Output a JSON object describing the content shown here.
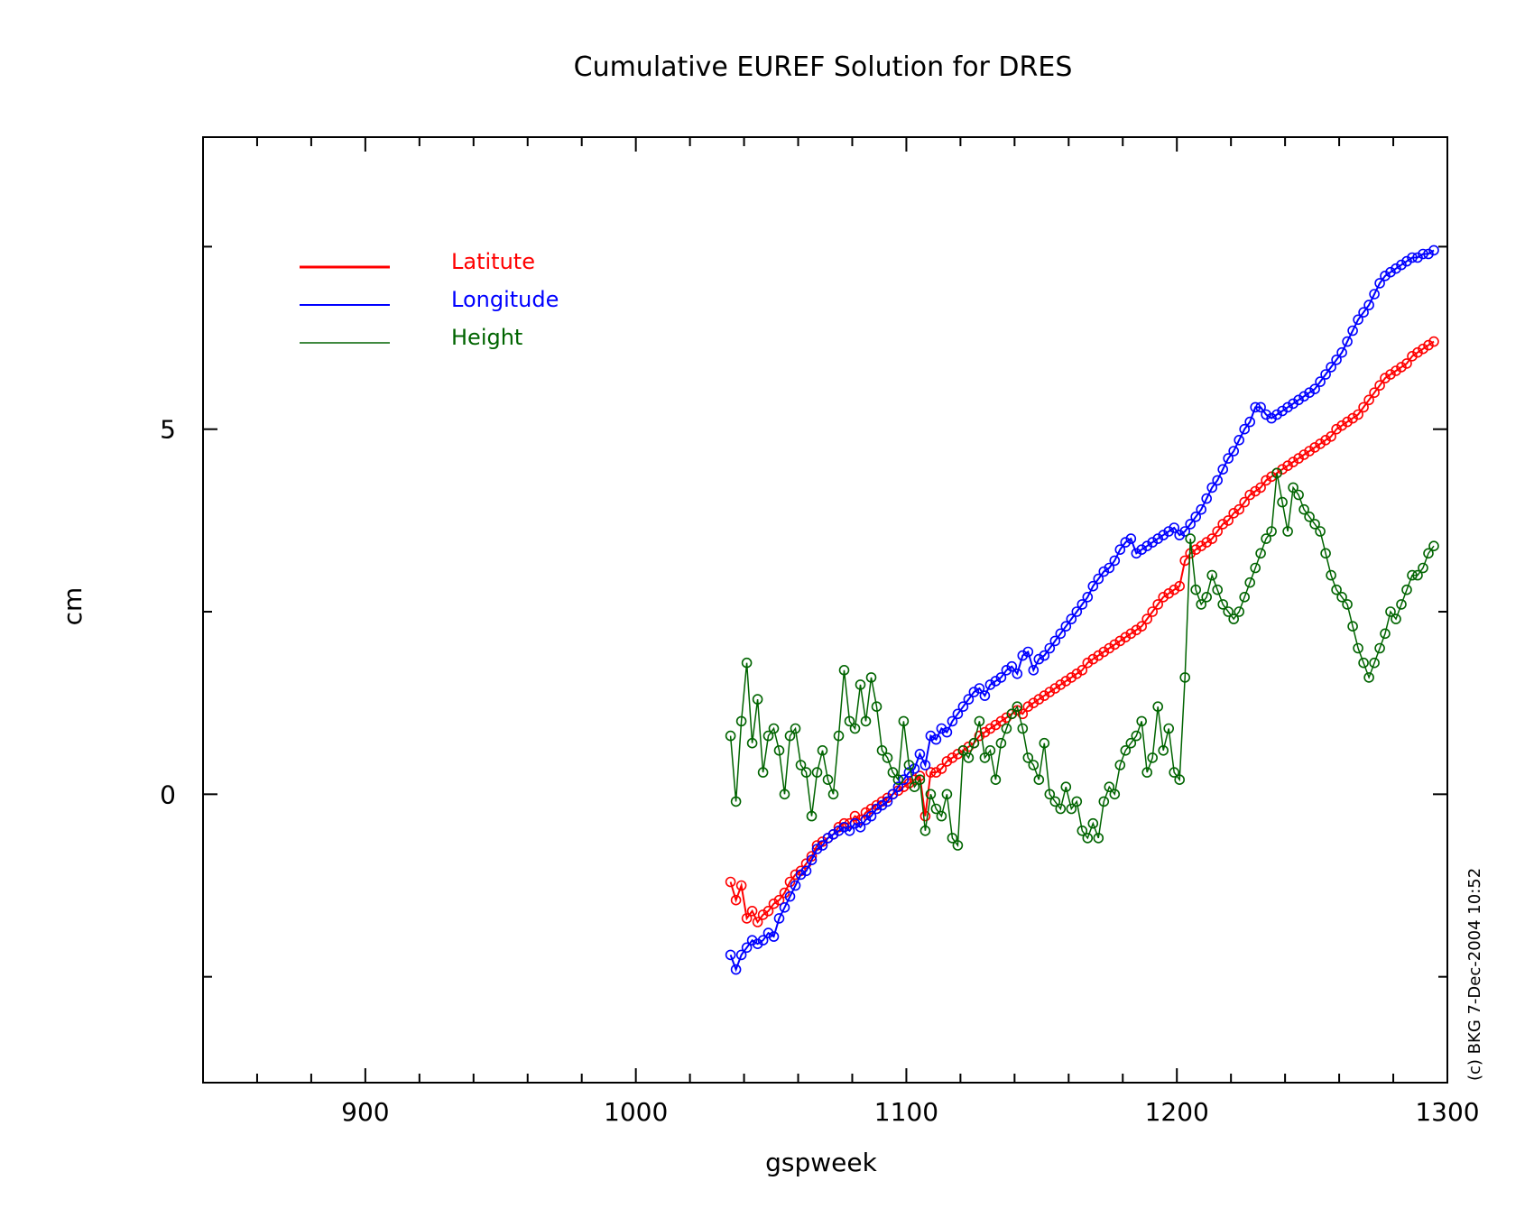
{
  "chart_data": {
    "type": "line",
    "title": "Cumulative EUREF Solution for DRES",
    "xlabel": "gspweek",
    "ylabel": "cm",
    "xlim": [
      840,
      1300
    ],
    "ylim": [
      -3.95,
      9
    ],
    "xticks": [
      900,
      1000,
      1100,
      1200,
      1300
    ],
    "yticks": [
      0,
      5
    ],
    "marker": "open-circle",
    "grid": false,
    "legend_position": "top-left",
    "credit": "(c) BKG 7-Dec-2004 10:52",
    "series": [
      {
        "name": "Latitute",
        "color": "#ff0000",
        "x": [
          1035,
          1037,
          1039,
          1041,
          1043,
          1045,
          1047,
          1049,
          1051,
          1053,
          1055,
          1057,
          1059,
          1061,
          1063,
          1065,
          1067,
          1069,
          1071,
          1073,
          1075,
          1077,
          1079,
          1081,
          1083,
          1085,
          1087,
          1089,
          1091,
          1093,
          1095,
          1097,
          1099,
          1101,
          1103,
          1105,
          1107,
          1109,
          1111,
          1113,
          1115,
          1117,
          1119,
          1121,
          1123,
          1125,
          1127,
          1129,
          1131,
          1133,
          1135,
          1137,
          1139,
          1141,
          1143,
          1145,
          1147,
          1149,
          1151,
          1153,
          1155,
          1157,
          1159,
          1161,
          1163,
          1165,
          1167,
          1169,
          1171,
          1173,
          1175,
          1177,
          1179,
          1181,
          1183,
          1185,
          1187,
          1189,
          1191,
          1193,
          1195,
          1197,
          1199,
          1201,
          1203,
          1205,
          1207,
          1209,
          1211,
          1213,
          1215,
          1217,
          1219,
          1221,
          1223,
          1225,
          1227,
          1229,
          1231,
          1233,
          1235,
          1237,
          1239,
          1241,
          1243,
          1245,
          1247,
          1249,
          1251,
          1253,
          1255,
          1257,
          1259,
          1261,
          1263,
          1265,
          1267,
          1269,
          1271,
          1273,
          1275,
          1277,
          1279,
          1281,
          1283,
          1285,
          1287,
          1289,
          1291,
          1293,
          1295
        ],
        "y": [
          -1.2,
          -1.45,
          -1.25,
          -1.7,
          -1.6,
          -1.75,
          -1.65,
          -1.6,
          -1.5,
          -1.45,
          -1.35,
          -1.2,
          -1.1,
          -1.05,
          -0.95,
          -0.85,
          -0.7,
          -0.65,
          -0.6,
          -0.55,
          -0.45,
          -0.4,
          -0.4,
          -0.3,
          -0.35,
          -0.25,
          -0.2,
          -0.15,
          -0.1,
          -0.05,
          0.0,
          0.05,
          0.1,
          0.15,
          0.2,
          0.25,
          -0.3,
          0.3,
          0.3,
          0.35,
          0.45,
          0.5,
          0.55,
          0.6,
          0.65,
          0.7,
          0.8,
          0.85,
          0.9,
          0.95,
          1.0,
          1.05,
          1.1,
          1.15,
          1.1,
          1.2,
          1.25,
          1.3,
          1.35,
          1.4,
          1.45,
          1.5,
          1.55,
          1.6,
          1.65,
          1.7,
          1.8,
          1.85,
          1.9,
          1.95,
          2.0,
          2.05,
          2.1,
          2.15,
          2.2,
          2.25,
          2.3,
          2.4,
          2.5,
          2.6,
          2.7,
          2.75,
          2.8,
          2.85,
          3.2,
          3.3,
          3.35,
          3.4,
          3.45,
          3.5,
          3.6,
          3.7,
          3.75,
          3.85,
          3.9,
          4.0,
          4.1,
          4.15,
          4.2,
          4.3,
          4.35,
          4.4,
          4.45,
          4.5,
          4.55,
          4.6,
          4.65,
          4.7,
          4.75,
          4.8,
          4.85,
          4.9,
          5.0,
          5.05,
          5.1,
          5.15,
          5.2,
          5.3,
          5.4,
          5.5,
          5.6,
          5.7,
          5.75,
          5.8,
          5.85,
          5.9,
          6.0,
          6.05,
          6.1,
          6.15,
          6.2
        ]
      },
      {
        "name": "Longitude",
        "color": "#0000ff",
        "x": [
          1035,
          1037,
          1039,
          1041,
          1043,
          1045,
          1047,
          1049,
          1051,
          1053,
          1055,
          1057,
          1059,
          1061,
          1063,
          1065,
          1067,
          1069,
          1071,
          1073,
          1075,
          1077,
          1079,
          1081,
          1083,
          1085,
          1087,
          1089,
          1091,
          1093,
          1095,
          1097,
          1099,
          1101,
          1103,
          1105,
          1107,
          1109,
          1111,
          1113,
          1115,
          1117,
          1119,
          1121,
          1123,
          1125,
          1127,
          1129,
          1131,
          1133,
          1135,
          1137,
          1139,
          1141,
          1143,
          1145,
          1147,
          1149,
          1151,
          1153,
          1155,
          1157,
          1159,
          1161,
          1163,
          1165,
          1167,
          1169,
          1171,
          1173,
          1175,
          1177,
          1179,
          1181,
          1183,
          1185,
          1187,
          1189,
          1191,
          1193,
          1195,
          1197,
          1199,
          1201,
          1203,
          1205,
          1207,
          1209,
          1211,
          1213,
          1215,
          1217,
          1219,
          1221,
          1223,
          1225,
          1227,
          1229,
          1231,
          1233,
          1235,
          1237,
          1239,
          1241,
          1243,
          1245,
          1247,
          1249,
          1251,
          1253,
          1255,
          1257,
          1259,
          1261,
          1263,
          1265,
          1267,
          1269,
          1271,
          1273,
          1275,
          1277,
          1279,
          1281,
          1283,
          1285,
          1287,
          1289,
          1291,
          1293,
          1295
        ],
        "y": [
          -2.2,
          -2.4,
          -2.2,
          -2.1,
          -2.0,
          -2.05,
          -2.0,
          -1.9,
          -1.95,
          -1.7,
          -1.55,
          -1.4,
          -1.25,
          -1.1,
          -1.05,
          -0.9,
          -0.75,
          -0.7,
          -0.6,
          -0.55,
          -0.5,
          -0.45,
          -0.5,
          -0.4,
          -0.45,
          -0.35,
          -0.3,
          -0.2,
          -0.15,
          -0.1,
          0.0,
          0.1,
          0.2,
          0.3,
          0.35,
          0.55,
          0.4,
          0.8,
          0.75,
          0.9,
          0.85,
          1.0,
          1.1,
          1.2,
          1.3,
          1.4,
          1.45,
          1.35,
          1.5,
          1.55,
          1.6,
          1.7,
          1.75,
          1.65,
          1.9,
          1.95,
          1.7,
          1.85,
          1.9,
          2.0,
          2.1,
          2.2,
          2.3,
          2.4,
          2.5,
          2.6,
          2.7,
          2.85,
          2.95,
          3.05,
          3.1,
          3.2,
          3.35,
          3.45,
          3.5,
          3.3,
          3.35,
          3.4,
          3.45,
          3.5,
          3.55,
          3.6,
          3.65,
          3.55,
          3.6,
          3.7,
          3.8,
          3.9,
          4.05,
          4.2,
          4.3,
          4.45,
          4.6,
          4.7,
          4.85,
          5.0,
          5.1,
          5.3,
          5.3,
          5.2,
          5.15,
          5.2,
          5.25,
          5.3,
          5.35,
          5.4,
          5.45,
          5.5,
          5.55,
          5.65,
          5.75,
          5.85,
          5.95,
          6.05,
          6.2,
          6.35,
          6.5,
          6.6,
          6.7,
          6.85,
          7.0,
          7.1,
          7.15,
          7.2,
          7.25,
          7.3,
          7.35,
          7.35,
          7.4,
          7.4,
          7.45
        ]
      },
      {
        "name": "Height",
        "color": "#006400",
        "x": [
          1035,
          1037,
          1039,
          1041,
          1043,
          1045,
          1047,
          1049,
          1051,
          1053,
          1055,
          1057,
          1059,
          1061,
          1063,
          1065,
          1067,
          1069,
          1071,
          1073,
          1075,
          1077,
          1079,
          1081,
          1083,
          1085,
          1087,
          1089,
          1091,
          1093,
          1095,
          1097,
          1099,
          1101,
          1103,
          1105,
          1107,
          1109,
          1111,
          1113,
          1115,
          1117,
          1119,
          1121,
          1123,
          1125,
          1127,
          1129,
          1131,
          1133,
          1135,
          1137,
          1139,
          1141,
          1143,
          1145,
          1147,
          1149,
          1151,
          1153,
          1155,
          1157,
          1159,
          1161,
          1163,
          1165,
          1167,
          1169,
          1171,
          1173,
          1175,
          1177,
          1179,
          1181,
          1183,
          1185,
          1187,
          1189,
          1191,
          1193,
          1195,
          1197,
          1199,
          1201,
          1203,
          1205,
          1207,
          1209,
          1211,
          1213,
          1215,
          1217,
          1219,
          1221,
          1223,
          1225,
          1227,
          1229,
          1231,
          1233,
          1235,
          1237,
          1239,
          1241,
          1243,
          1245,
          1247,
          1249,
          1251,
          1253,
          1255,
          1257,
          1259,
          1261,
          1263,
          1265,
          1267,
          1269,
          1271,
          1273,
          1275,
          1277,
          1279,
          1281,
          1283,
          1285,
          1287,
          1289,
          1291,
          1293,
          1295
        ],
        "y": [
          0.8,
          -0.1,
          1.0,
          1.8,
          0.7,
          1.3,
          0.3,
          0.8,
          0.9,
          0.6,
          0.0,
          0.8,
          0.9,
          0.4,
          0.3,
          -0.3,
          0.3,
          0.6,
          0.2,
          0.0,
          0.8,
          1.7,
          1.0,
          0.9,
          1.5,
          1.0,
          1.6,
          1.2,
          0.6,
          0.5,
          0.3,
          0.2,
          1.0,
          0.4,
          0.1,
          0.2,
          -0.5,
          0.0,
          -0.2,
          -0.3,
          0.0,
          -0.6,
          -0.7,
          0.6,
          0.5,
          0.7,
          1.0,
          0.5,
          0.6,
          0.2,
          0.7,
          0.9,
          1.1,
          1.2,
          0.9,
          0.5,
          0.4,
          0.2,
          0.7,
          0.0,
          -0.1,
          -0.2,
          0.1,
          -0.2,
          -0.1,
          -0.5,
          -0.6,
          -0.4,
          -0.6,
          -0.1,
          0.1,
          0.0,
          0.4,
          0.6,
          0.7,
          0.8,
          1.0,
          0.3,
          0.5,
          1.2,
          0.6,
          0.9,
          0.3,
          0.2,
          1.6,
          3.5,
          2.8,
          2.6,
          2.7,
          3.0,
          2.8,
          2.6,
          2.5,
          2.4,
          2.5,
          2.7,
          2.9,
          3.1,
          3.3,
          3.5,
          3.6,
          4.4,
          4.0,
          3.6,
          4.2,
          4.1,
          3.9,
          3.8,
          3.7,
          3.6,
          3.3,
          3.0,
          2.8,
          2.7,
          2.6,
          2.3,
          2.0,
          1.8,
          1.6,
          1.8,
          2.0,
          2.2,
          2.5,
          2.4,
          2.6,
          2.8,
          3.0,
          3.0,
          3.1,
          3.3,
          3.4
        ]
      }
    ]
  }
}
